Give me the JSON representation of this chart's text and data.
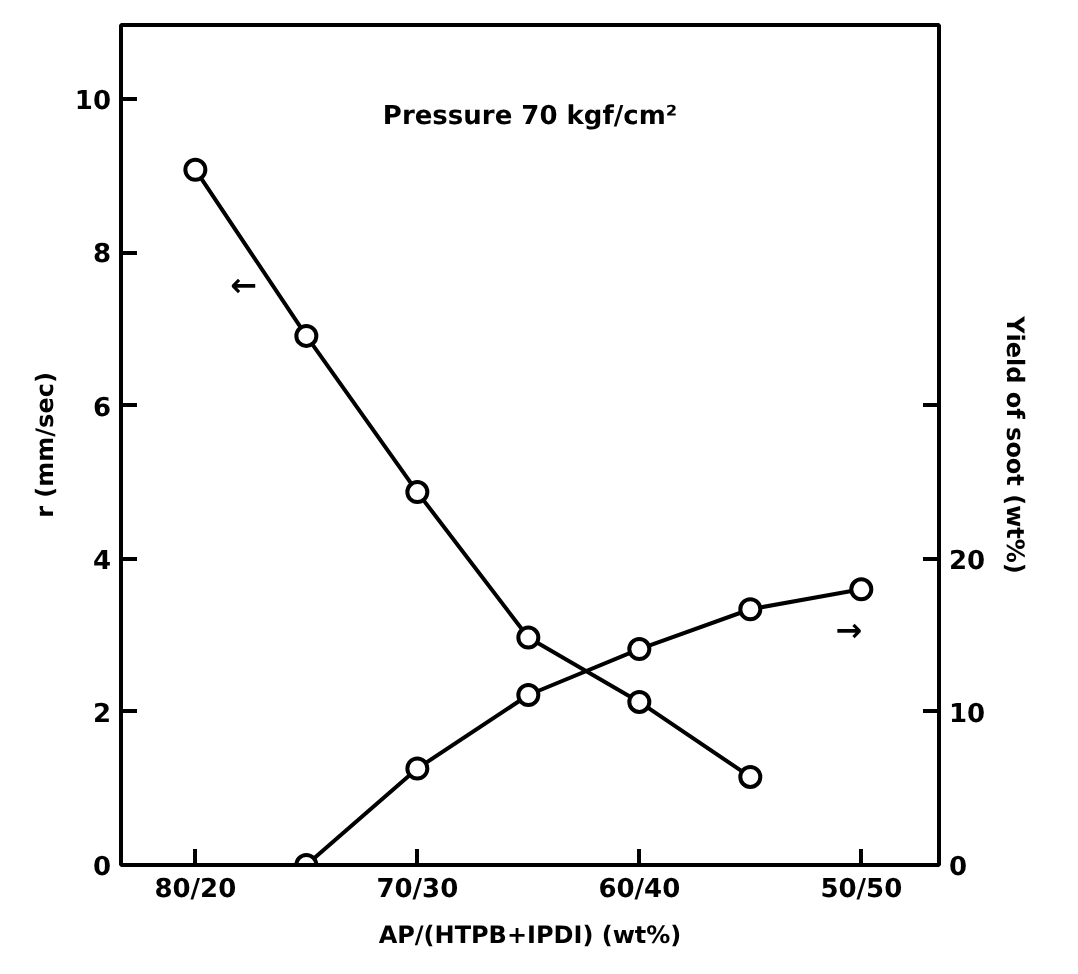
{
  "chart_data": {
    "type": "line",
    "xlabel": "AP/(HTPB+IPDI) (wt%)",
    "ylabel": "r (mm/sec)",
    "y2label": "Yield of soot (wt%)",
    "categories": [
      "80/20",
      null,
      "70/30",
      null,
      "60/40",
      null,
      "50/50"
    ],
    "ylim": [
      0,
      10.97
    ],
    "yticks": [
      0,
      2,
      4,
      6,
      8,
      10
    ],
    "y2lim": [
      0,
      54.85
    ],
    "y2ticks": [
      0,
      10,
      20,
      {
        "value": 30,
        "label": null
      }
    ],
    "series": [
      {
        "color": "#000000",
        "values": [
          9.08,
          6.91,
          4.87,
          2.97,
          2.13,
          1.15,
          null
        ]
      },
      {
        "color": "#000000",
        "axis": "y2",
        "values": [
          null,
          0,
          6.3,
          11.1,
          14.1,
          16.7,
          18.0
        ]
      }
    ],
    "annotations": [
      "Pressure 70 kgf/cm²",
      "←",
      "→"
    ],
    "marker": "circle",
    "line_style": "solid",
    "grid": false
  }
}
